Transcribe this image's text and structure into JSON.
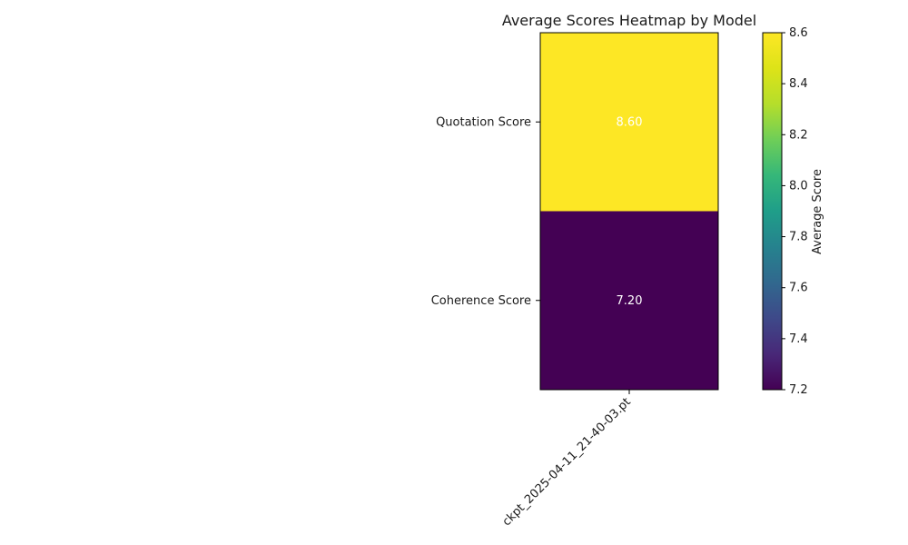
{
  "chart_data": {
    "type": "heatmap",
    "title": "Average Scores Heatmap by Model",
    "x_categories": [
      "ckpt_2025-04-11_21-40-03.pt"
    ],
    "y_categories": [
      "Quotation Score",
      "Coherence Score"
    ],
    "values": [
      [
        8.6
      ],
      [
        7.2
      ]
    ],
    "cell_labels": [
      "8.60",
      "7.20"
    ],
    "colorbar": {
      "label": "Average Score",
      "range": [
        7.2,
        8.6
      ],
      "ticks": [
        "7.2",
        "7.4",
        "7.6",
        "7.8",
        "8.0",
        "8.2",
        "8.4",
        "8.6"
      ],
      "colormap": "viridis"
    },
    "colors": {
      "high": "#fde725",
      "low": "#440154",
      "cell_text": "#ffffff"
    }
  }
}
